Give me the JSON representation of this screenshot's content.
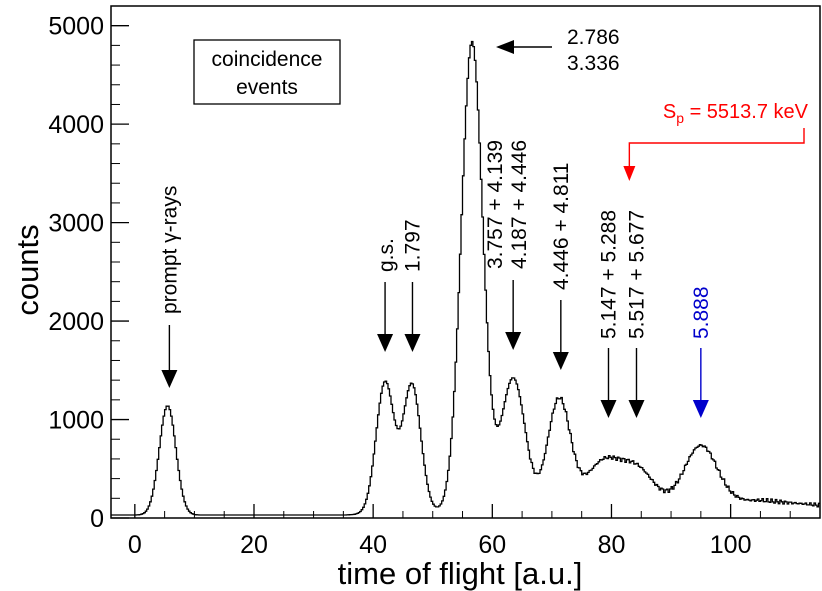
{
  "chart_data": {
    "type": "line",
    "title": "",
    "xlabel": "time of flight [a.u.]",
    "ylabel": "counts",
    "xlim": [
      -4,
      115
    ],
    "ylim": [
      0,
      5200
    ],
    "x_ticks": [
      0,
      20,
      40,
      60,
      80,
      100
    ],
    "y_ticks": [
      0,
      1000,
      2000,
      3000,
      4000,
      5000
    ],
    "grid": false,
    "legend": "none",
    "line_color": "#000000",
    "baseline": [
      [
        -4,
        30
      ],
      [
        35,
        30
      ],
      [
        105,
        180
      ],
      [
        115,
        130
      ]
    ],
    "peaks": [
      {
        "center": 5.5,
        "height": 1110,
        "sigma": 1.4
      },
      {
        "center": 42.0,
        "height": 1330,
        "sigma": 1.5
      },
      {
        "center": 46.5,
        "height": 1300,
        "sigma": 1.5
      },
      {
        "center": 56.6,
        "height": 4760,
        "sigma": 1.8
      },
      {
        "center": 63.5,
        "height": 1330,
        "sigma": 2.0
      },
      {
        "center": 71.2,
        "height": 1100,
        "sigma": 1.9
      },
      {
        "center": 78.5,
        "height": 430,
        "sigma": 2.8
      },
      {
        "center": 84.2,
        "height": 360,
        "sigma": 2.8
      },
      {
        "center": 95.0,
        "height": 580,
        "sigma": 2.7
      }
    ],
    "annotations": [
      {
        "id": "prompt",
        "text": "prompt γ-rays",
        "x": 5.8,
        "color": "#000000"
      },
      {
        "id": "gs",
        "text": "g.s.",
        "x": 42.0,
        "color": "#000000"
      },
      {
        "id": "e1797",
        "text": "1.797",
        "x": 46.6,
        "color": "#000000"
      },
      {
        "id": "e3757",
        "lines": [
          "3.757 + 4.139",
          "4.187 + 4.446"
        ],
        "x": 63.5,
        "color": "#000000"
      },
      {
        "id": "e4446",
        "text": "4.446 + 4.811",
        "x": 71.5,
        "color": "#000000"
      },
      {
        "id": "e5147",
        "text": "5.147 + 5.288",
        "x": 79.5,
        "color": "#000000"
      },
      {
        "id": "e5517",
        "text": "5.517 + 5.677",
        "x": 84.2,
        "color": "#000000"
      },
      {
        "id": "e5888",
        "text": "5.888",
        "x": 95.0,
        "color": "#0000cc"
      },
      {
        "id": "e2786",
        "lines": [
          "2.786",
          "3.336"
        ],
        "x": 57.5,
        "color": "#000000"
      }
    ],
    "box_label": [
      "coincidence",
      "events"
    ],
    "sp_label": "S_p = 5513.7 keV",
    "sp_parts": {
      "main": "S",
      "sub": "p",
      "rest": " = 5513.7 keV"
    },
    "sp_color": "#ff0000",
    "sp_x": 83.0
  }
}
